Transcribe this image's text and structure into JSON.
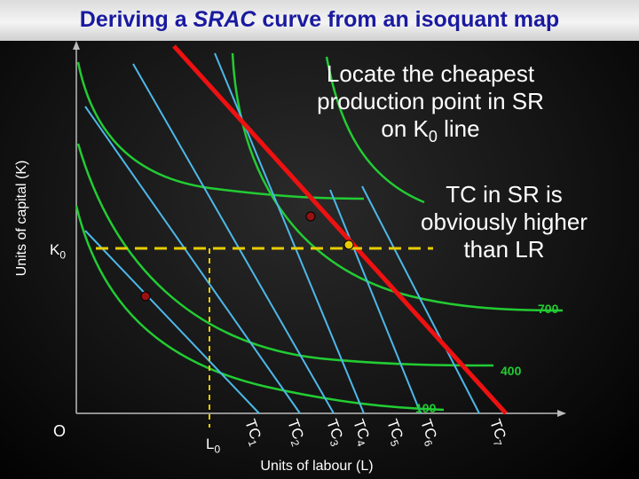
{
  "title": {
    "prefix": "Deriving a ",
    "emph": "SRAC",
    "suffix": " curve from an isoquant map"
  },
  "axes": {
    "y_label": "Units of capital (K)",
    "x_label": "Units of labour (L)",
    "origin": "O",
    "k0": "K",
    "k0_sub": "0",
    "l0": "L",
    "l0_sub": "0"
  },
  "annotations": {
    "cheapest_line1": "Locate the cheapest",
    "cheapest_line2": "production point in SR",
    "cheapest_line3_a": "on K",
    "cheapest_line3_sub": "0",
    "cheapest_line3_b": " line",
    "tc_line1": "TC in SR is",
    "tc_line2": "obviously higher",
    "tc_line3": "than LR"
  },
  "isoquants": [
    "700",
    "400",
    "100"
  ],
  "isocost_lines": [
    {
      "t": "TC",
      "s": "1"
    },
    {
      "t": "TC",
      "s": "2"
    },
    {
      "t": "TC",
      "s": "3"
    },
    {
      "t": "TC",
      "s": "4"
    },
    {
      "t": "TC",
      "s": "5"
    },
    {
      "t": "TC",
      "s": "6"
    },
    {
      "t": "TC",
      "s": "7"
    }
  ],
  "colors": {
    "isoquant": "#22cc33",
    "isocost": "#4db8e8",
    "highlight_isocost": "#ee1111",
    "k0_line": "#e8cc00",
    "point_red": "#991111",
    "point_yellow": "#e8cc00"
  }
}
